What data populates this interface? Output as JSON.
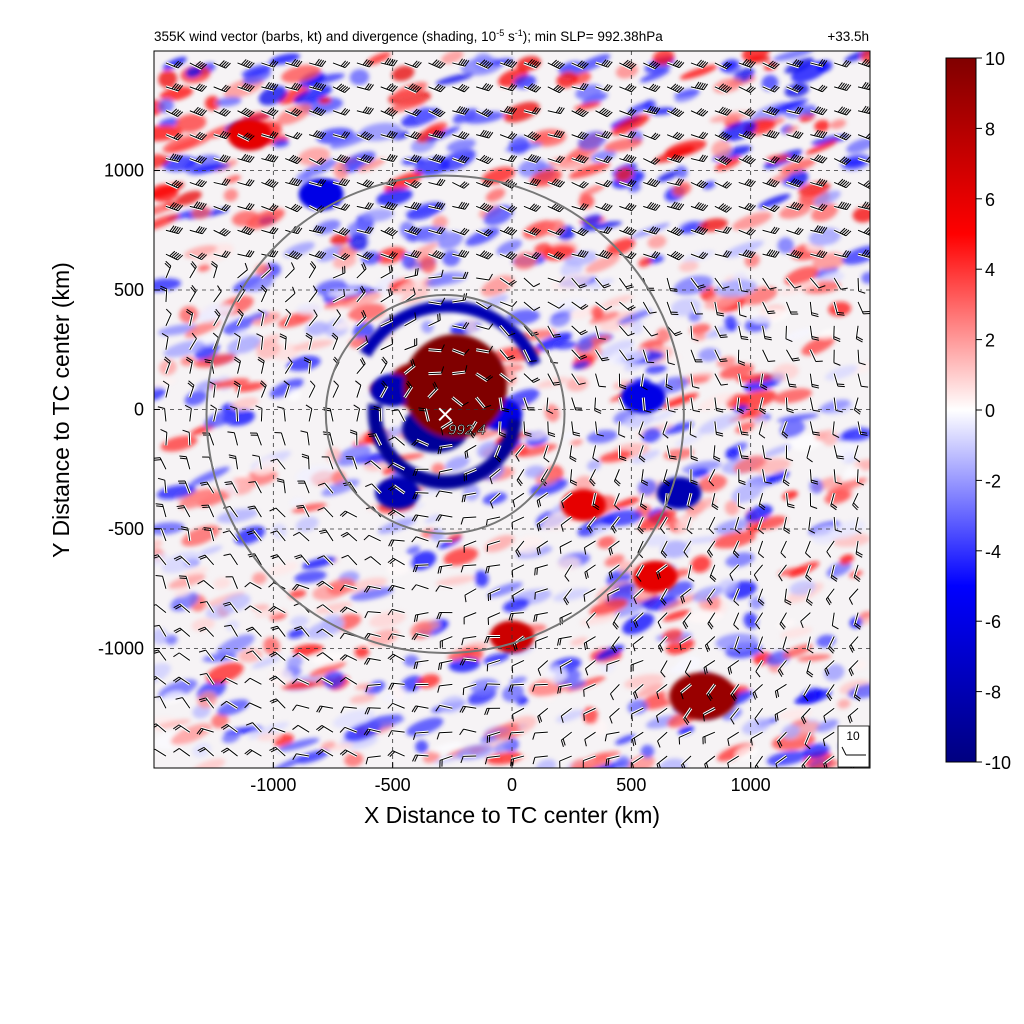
{
  "chart_data": {
    "type": "heatmap",
    "title": "355K wind vector (barbs, kt) and divergence (shading, 10",
    "title_exponent": "-5",
    "title_unit": " s",
    "title_unit_exponent": "-1",
    "title_tail": "); min SLP= 992.38hPa",
    "forecast_time": "+33.5h",
    "xlabel": "X Distance to TC center (km)",
    "ylabel": "Y Distance to TC center (km)",
    "xlim": [
      -1500,
      1500
    ],
    "ylim": [
      -1500,
      1500
    ],
    "x_ticks": [
      -1000,
      -500,
      0,
      500,
      1000
    ],
    "y_ticks": [
      -1000,
      -500,
      0,
      500,
      1000
    ],
    "x_tick_labels": [
      "-1000",
      "-500",
      "0",
      "500",
      "1000"
    ],
    "y_tick_labels": [
      "-1000",
      "-500",
      "0",
      "500",
      "1000"
    ],
    "grid": true,
    "colorbar": {
      "min": -10,
      "max": 10,
      "ticks": [
        10,
        8,
        6,
        4,
        2,
        0,
        -2,
        -4,
        -6,
        -8,
        -10
      ],
      "tick_labels": [
        "10",
        "8",
        "6",
        "4",
        "2",
        "0",
        "-2",
        "-4",
        "-6",
        "-8",
        "-10"
      ],
      "colors": [
        "#000080",
        "#0000ff",
        "#ffffff",
        "#ff0000",
        "#800000"
      ]
    },
    "tc_center": {
      "x": -280,
      "y": -20
    },
    "min_slp_label": "992.4",
    "range_rings_km": [
      500,
      1000
    ],
    "reference_barb_label": "10",
    "divergence_features": [
      {
        "x": -250,
        "y": 150,
        "value": 10
      },
      {
        "x": -380,
        "y": 100,
        "value": 9
      },
      {
        "x": -150,
        "y": 60,
        "value": 8
      },
      {
        "x": -320,
        "y": -80,
        "value": -9
      },
      {
        "x": -50,
        "y": -20,
        "value": -6
      },
      {
        "x": -500,
        "y": 80,
        "value": -8
      },
      {
        "x": -480,
        "y": -350,
        "value": -8
      },
      {
        "x": 550,
        "y": 50,
        "value": -6
      },
      {
        "x": 700,
        "y": -350,
        "value": -8
      },
      {
        "x": 300,
        "y": -400,
        "value": 6
      },
      {
        "x": 600,
        "y": -700,
        "value": 6
      },
      {
        "x": 800,
        "y": -1200,
        "value": 9
      },
      {
        "x": 0,
        "y": -950,
        "value": 7
      },
      {
        "x": -1100,
        "y": 1150,
        "value": 6
      },
      {
        "x": -800,
        "y": 900,
        "value": -6
      }
    ]
  }
}
